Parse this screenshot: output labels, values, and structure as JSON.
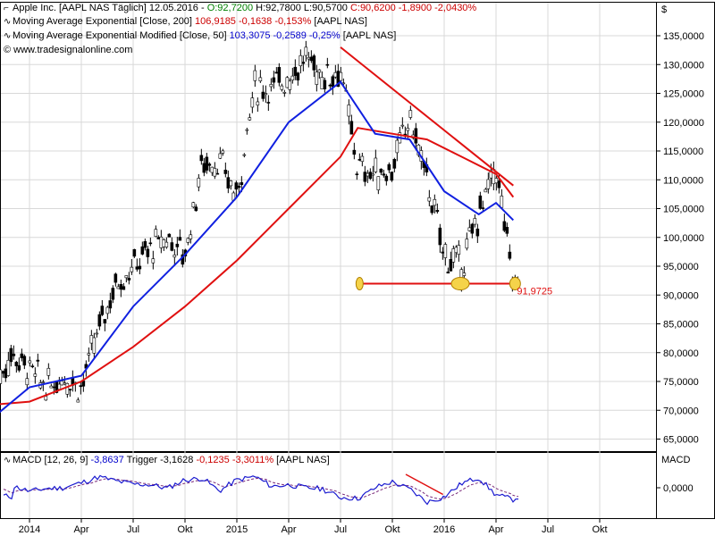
{
  "header": {
    "line1_prefix": "Apple Inc. [AAPL NAS  Täglich]  12.05.2016 - ",
    "line1_o": "O:92,7200",
    "line1_hl": " H:92,7800 L:90,5700 ",
    "line1_c": "C:90,6200 -1,8900 -2,0430%",
    "line2_label": "Moving Average Exponential [Close, 200] ",
    "line2_values": "106,9185 -0,1638 -0,153%",
    "line2_suffix": " [AAPL NAS]",
    "line3_label": "Moving Average Exponential Modified [Close, 50] ",
    "line3_values": "103,3075 -0,2589 -0,25%",
    "line3_suffix": " [AAPL NAS]",
    "website": "© www.tradesignalonline.com"
  },
  "macd_header": {
    "label": "MACD [12, 26, 9] ",
    "macd_value": "-3,8637",
    "trigger": " Trigger -3,1628 ",
    "diff": "-0,1235 -3,3011%",
    "suffix": " [AAPL NAS]"
  },
  "currency_symbol": "$",
  "macd_axis_title": "MACD",
  "support_label": "91,9725",
  "colors": {
    "ema200": "#e01010",
    "ema50": "#1020e0",
    "macd": "#1a1ad0",
    "trigger": "#7a2a7a",
    "trend": "#e01010",
    "support": "#e01010",
    "highlight": "#f5d34a",
    "grid": "#d8d8d8",
    "candle": "#000000"
  },
  "chart_data": [
    {
      "type": "line",
      "subtype": "candlestick-price",
      "title": "Apple Inc. [AAPL NAS Täglich]",
      "y_axis_label": "$",
      "ylim": [
        61,
        139
      ],
      "y_ticks": [
        "65,0000",
        "70,0000",
        "75,0000",
        "80,0000",
        "85,0000",
        "90,0000",
        "95,0000",
        "100,0000",
        "105,0000",
        "110,0000",
        "115,0000",
        "120,0000",
        "125,0000",
        "130,0000",
        "135,0000"
      ],
      "y_tick_values": [
        65,
        70,
        75,
        80,
        85,
        90,
        95,
        100,
        105,
        110,
        115,
        120,
        125,
        130,
        135
      ],
      "x_ticks": [
        "2014",
        "Apr",
        "Jul",
        "Okt",
        "2015",
        "Apr",
        "Jul",
        "Okt",
        "2016",
        "Apr",
        "Jul",
        "Okt"
      ],
      "x_tick_dates": [
        "2014-01",
        "2014-04",
        "2014-07",
        "2014-10",
        "2015-01",
        "2015-04",
        "2015-07",
        "2015-10",
        "2016-01",
        "2016-04",
        "2016-07",
        "2016-10"
      ],
      "grid": true,
      "price_points": [
        [
          "2013-11",
          74
        ],
        [
          "2013-12",
          80
        ],
        [
          "2014-01",
          77
        ],
        [
          "2014-02",
          74
        ],
        [
          "2014-03",
          76
        ],
        [
          "2014-04",
          74
        ],
        [
          "2014-05",
          84
        ],
        [
          "2014-06",
          92
        ],
        [
          "2014-07",
          95
        ],
        [
          "2014-08",
          98
        ],
        [
          "2014-09",
          100
        ],
        [
          "2014-10",
          97
        ],
        [
          "2014-11",
          113
        ],
        [
          "2014-12",
          113
        ],
        [
          "2015-01",
          107
        ],
        [
          "2015-02",
          126
        ],
        [
          "2015-03",
          126
        ],
        [
          "2015-04",
          128
        ],
        [
          "2015-05",
          131
        ],
        [
          "2015-06",
          128
        ],
        [
          "2015-07",
          129
        ],
        [
          "2015-08",
          112
        ],
        [
          "2015-09",
          111
        ],
        [
          "2015-10",
          112
        ],
        [
          "2015-11",
          121
        ],
        [
          "2015-12",
          110
        ],
        [
          "2016-01",
          97
        ],
        [
          "2016-02",
          95
        ],
        [
          "2016-03",
          104
        ],
        [
          "2016-04",
          112
        ],
        [
          "2016-05",
          92
        ]
      ],
      "series": [
        {
          "name": "Moving Average Exponential [Close, 200]",
          "color": "#e01010",
          "points": [
            [
              "2013-11",
              71
            ],
            [
              "2014-01",
              71.5
            ],
            [
              "2014-04",
              75
            ],
            [
              "2014-07",
              81
            ],
            [
              "2014-10",
              88
            ],
            [
              "2015-01",
              96
            ],
            [
              "2015-04",
              105
            ],
            [
              "2015-07",
              114
            ],
            [
              "2015-08",
              119
            ],
            [
              "2015-10",
              118
            ],
            [
              "2015-12",
              117
            ],
            [
              "2016-02",
              114
            ],
            [
              "2016-04",
              111
            ],
            [
              "2016-05",
              107
            ]
          ]
        },
        {
          "name": "Moving Average Exponential Modified [Close, 50]",
          "color": "#1020e0",
          "points": [
            [
              "2013-11",
              69
            ],
            [
              "2014-01",
              74
            ],
            [
              "2014-04",
              76
            ],
            [
              "2014-07",
              88
            ],
            [
              "2014-10",
              97
            ],
            [
              "2015-01",
              107
            ],
            [
              "2015-04",
              120
            ],
            [
              "2015-07",
              127
            ],
            [
              "2015-09",
              118
            ],
            [
              "2015-11",
              117
            ],
            [
              "2016-01",
              108
            ],
            [
              "2016-03",
              104
            ],
            [
              "2016-04",
              106
            ],
            [
              "2016-05",
              103
            ]
          ]
        }
      ],
      "trendline": [
        [
          "2015-07",
          133
        ],
        [
          "2016-05",
          109
        ]
      ],
      "support_level": 91.9725,
      "support_from": "2015-08",
      "support_to": "2016-05"
    },
    {
      "type": "line",
      "title": "MACD [12, 26, 9]",
      "y_axis_label": "MACD",
      "y_ticks": [
        "0,0000"
      ],
      "y_tick_values": [
        0
      ],
      "ylim": [
        -6,
        5
      ],
      "series": [
        {
          "name": "MACD",
          "color": "#1a1ad0"
        },
        {
          "name": "Trigger",
          "color": "#7a2a7a"
        }
      ]
    }
  ]
}
